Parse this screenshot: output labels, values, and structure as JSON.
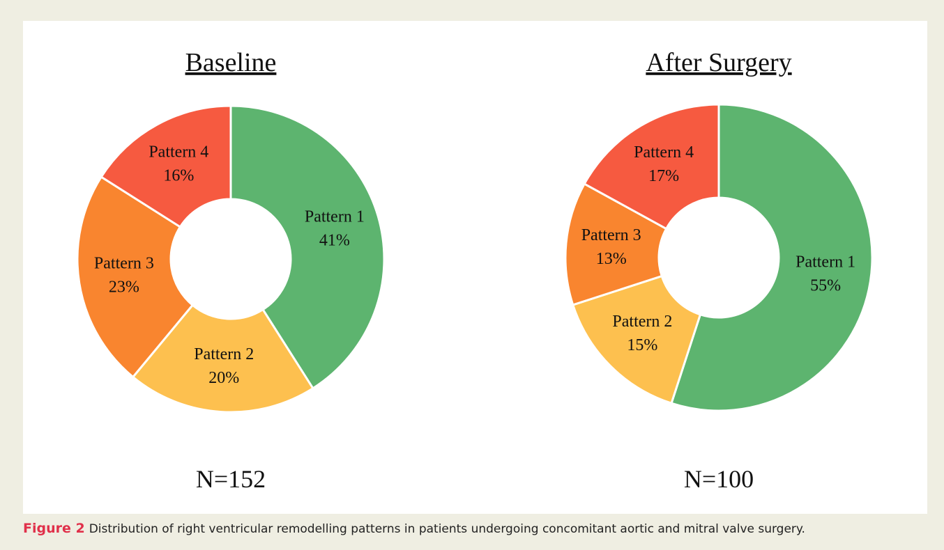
{
  "chart_data": [
    {
      "type": "donut",
      "title": "Baseline",
      "note": "N=152",
      "categories": [
        "Pattern 1",
        "Pattern 2",
        "Pattern 3",
        "Pattern 4"
      ],
      "values": [
        41,
        20,
        23,
        16
      ],
      "value_labels": [
        "41%",
        "20%",
        "23%",
        "16%"
      ],
      "colors": [
        "#5db46f",
        "#fdc04f",
        "#f9852f",
        "#f65a40"
      ]
    },
    {
      "type": "donut",
      "title": "After Surgery",
      "note": "N=100",
      "categories": [
        "Pattern 1",
        "Pattern 2",
        "Pattern 3",
        "Pattern 4"
      ],
      "values": [
        55,
        15,
        13,
        17
      ],
      "value_labels": [
        "55%",
        "15%",
        "13%",
        "17%"
      ],
      "colors": [
        "#5db46f",
        "#fdc04f",
        "#f9852f",
        "#f65a40"
      ]
    }
  ],
  "caption": {
    "label": "Figure 2",
    "text": "Distribution of right ventricular remodelling patterns in patients undergoing concomitant aortic and mitral valve surgery."
  }
}
